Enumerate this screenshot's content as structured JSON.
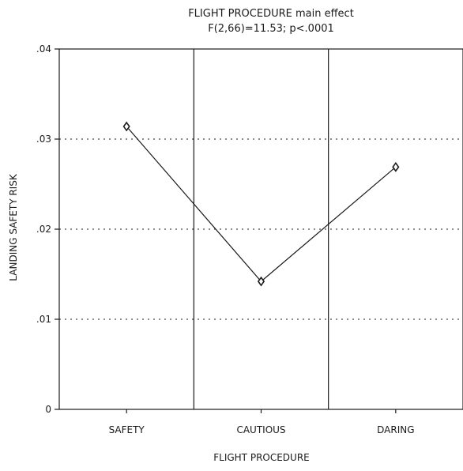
{
  "chart_data": {
    "type": "line",
    "title": "FLIGHT PROCEDURE main effect",
    "subtitle": "F(2,66)=11.53; p<.0001",
    "xlabel": "FLIGHT PROCEDURE",
    "ylabel": "LANDING SAFETY RISK",
    "categories": [
      "SAFETY",
      "CAUTIOUS",
      "DARING"
    ],
    "values": [
      0.0314,
      0.0142,
      0.0269
    ],
    "ylim": [
      0,
      0.04
    ],
    "yticks": [
      0,
      0.01,
      0.02,
      0.03,
      0.04
    ],
    "ytick_labels": [
      "0",
      ".01",
      ".02",
      ".03",
      ".04"
    ],
    "grid": "horizontal dotted",
    "legend": "none"
  }
}
